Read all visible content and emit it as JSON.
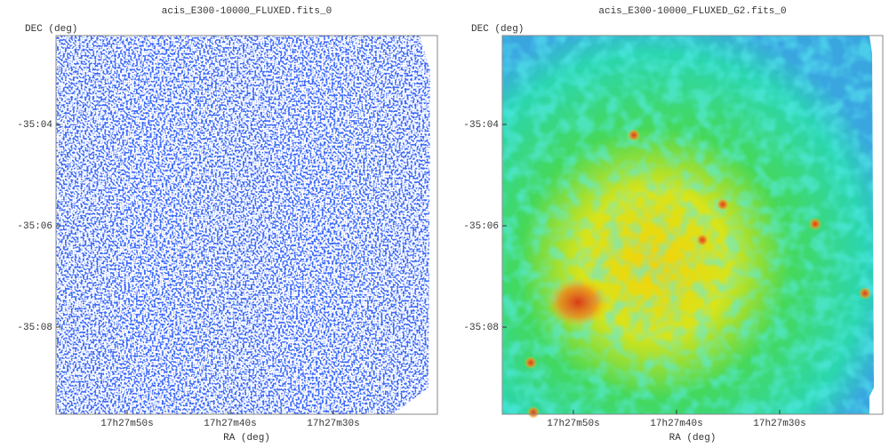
{
  "chart_data": [
    {
      "type": "image",
      "title": "acis_E300-10000_FLUXED.fits_0",
      "ylabel": "DEC (deg)",
      "xlabel": "RA (deg)",
      "yticks": [
        "-35:04",
        "-35:06",
        "-35:08"
      ],
      "xticks": [
        "17h27m50s",
        "17h27m40s",
        "17h27m30s"
      ]
    },
    {
      "type": "image",
      "title": "acis_E300-10000_FLUXED_G2.fits_0",
      "ylabel": "DEC (deg)",
      "xlabel": "RA (deg)",
      "yticks": [
        "-35:04",
        "-35:06",
        "-35:08"
      ],
      "xticks": [
        "17h27m50s",
        "17h27m40s",
        "17h27m30s"
      ]
    }
  ]
}
